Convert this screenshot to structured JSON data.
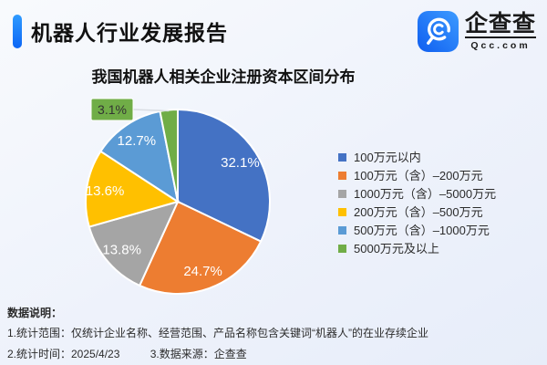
{
  "header": {
    "title": "机器人行业发展报告",
    "logo": {
      "brand": "企查查",
      "domain": "Qcc.com"
    }
  },
  "chart_data": {
    "type": "pie",
    "title": "我国机器人相关企业注册资本区间分布",
    "value_suffix": "%",
    "start_angle_deg": 0,
    "direction": "clockwise",
    "legend_position": "right",
    "slices": [
      {
        "label": "100万元以内",
        "value": 32.1,
        "color": "#4472C4",
        "label_outside": false
      },
      {
        "label": "100万元（含）–200万元",
        "value": 24.7,
        "color": "#ED7D31",
        "label_outside": false
      },
      {
        "label": "1000万元（含）–5000万元",
        "value": 13.8,
        "color": "#A5A5A5",
        "label_outside": false
      },
      {
        "label": "200万元（含）–500万元",
        "value": 13.6,
        "color": "#FFC000",
        "label_outside": false
      },
      {
        "label": "500万元（含）–1000万元",
        "value": 12.7,
        "color": "#5B9BD5",
        "label_outside": false
      },
      {
        "label": "5000万元及以上",
        "value": 3.1,
        "color": "#70AD47",
        "label_outside": true
      }
    ],
    "slice_label_color": "#ffffff",
    "outside_label_text_color": "#333333"
  },
  "footer": {
    "heading": "数据说明：",
    "note_scope": "1.统计范围：仅统计企业名称、经营范围、产品名称包含关键词“机器人”的在业存续企业",
    "note_time": "2.统计时间：2025/4/23",
    "note_source": "3.数据来源：企查查"
  },
  "colors": {
    "accent_blue": "#1677f5",
    "background_tint": "#eef2fb"
  }
}
